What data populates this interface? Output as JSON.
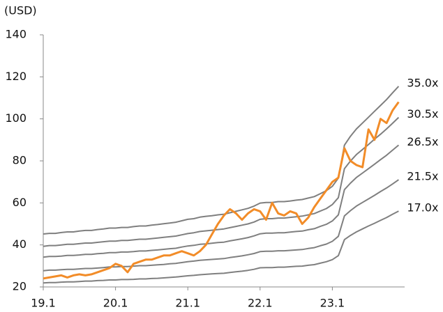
{
  "chart_data": {
    "type": "line",
    "y_label": "(USD)",
    "categories": [
      "19.1",
      null,
      null,
      null,
      null,
      null,
      null,
      null,
      null,
      null,
      null,
      null,
      "20.1",
      null,
      null,
      null,
      null,
      null,
      null,
      null,
      null,
      null,
      null,
      null,
      "21.1",
      null,
      null,
      null,
      null,
      null,
      null,
      null,
      null,
      null,
      null,
      null,
      "22.1",
      null,
      null,
      null,
      null,
      null,
      null,
      null,
      null,
      null,
      null,
      null,
      "23.1",
      null,
      null,
      null,
      null,
      null,
      null,
      null,
      null,
      null,
      null,
      null
    ],
    "ylim": [
      20,
      140
    ],
    "yticks": [
      20,
      40,
      60,
      80,
      100,
      120,
      140
    ],
    "series": [
      {
        "name": "35.0x",
        "color": "#7f7f7f",
        "values": [
          45.2,
          45.5,
          45.5,
          45.9,
          46.2,
          46.2,
          46.6,
          46.9,
          46.9,
          47.3,
          47.6,
          48.0,
          48.0,
          48.3,
          48.3,
          48.7,
          49.0,
          49.0,
          49.4,
          49.7,
          50.1,
          50.4,
          50.8,
          51.5,
          52.2,
          52.5,
          53.2,
          53.6,
          53.9,
          54.3,
          54.6,
          55.3,
          56.0,
          56.7,
          57.4,
          58.5,
          59.9,
          60.2,
          60.2,
          60.6,
          60.6,
          60.9,
          61.3,
          61.6,
          62.3,
          63.0,
          64.4,
          65.8,
          67.9,
          71.8,
          87.5,
          91.7,
          95.2,
          98.0,
          100.8,
          103.6,
          106.4,
          109.2,
          112.4,
          115.5
        ]
      },
      {
        "name": "30.5x",
        "color": "#7f7f7f",
        "values": [
          39.3,
          39.7,
          39.7,
          40.0,
          40.3,
          40.3,
          40.6,
          40.9,
          40.9,
          41.2,
          41.5,
          41.8,
          41.8,
          42.1,
          42.1,
          42.4,
          42.7,
          42.7,
          43.0,
          43.3,
          43.6,
          43.9,
          44.2,
          44.8,
          45.4,
          45.8,
          46.4,
          46.7,
          47.0,
          47.3,
          47.6,
          48.2,
          48.8,
          49.4,
          50.0,
          50.9,
          52.2,
          52.5,
          52.5,
          52.8,
          52.8,
          53.1,
          53.4,
          53.7,
          54.3,
          54.9,
          56.1,
          57.3,
          59.2,
          62.5,
          76.3,
          79.9,
          83.0,
          85.4,
          87.8,
          90.3,
          92.7,
          95.2,
          97.9,
          100.7
        ]
      },
      {
        "name": "26.5x",
        "color": "#7f7f7f",
        "values": [
          34.2,
          34.5,
          34.5,
          34.7,
          35.0,
          35.0,
          35.2,
          35.5,
          35.5,
          35.8,
          36.0,
          36.3,
          36.3,
          36.6,
          36.6,
          36.8,
          37.1,
          37.1,
          37.4,
          37.6,
          37.9,
          38.2,
          38.4,
          39.0,
          39.5,
          39.8,
          40.3,
          40.5,
          40.8,
          41.1,
          41.3,
          41.9,
          42.4,
          42.9,
          43.5,
          44.3,
          45.3,
          45.6,
          45.6,
          45.8,
          45.8,
          46.1,
          46.4,
          46.6,
          47.2,
          47.7,
          48.8,
          49.8,
          51.4,
          54.3,
          66.3,
          69.4,
          72.1,
          74.2,
          76.3,
          78.4,
          80.6,
          82.7,
          85.1,
          87.5
        ]
      },
      {
        "name": "21.5x",
        "color": "#7f7f7f",
        "values": [
          27.7,
          28.0,
          28.0,
          28.2,
          28.4,
          28.4,
          28.6,
          28.8,
          28.8,
          29.0,
          29.2,
          29.5,
          29.5,
          29.7,
          29.7,
          29.9,
          30.1,
          30.1,
          30.3,
          30.5,
          30.7,
          31.0,
          31.2,
          31.6,
          32.0,
          32.3,
          32.7,
          32.9,
          33.1,
          33.3,
          33.5,
          34.0,
          34.4,
          34.8,
          35.3,
          35.9,
          36.8,
          37.0,
          37.0,
          37.2,
          37.2,
          37.4,
          37.6,
          37.8,
          38.3,
          38.7,
          39.6,
          40.4,
          41.7,
          44.1,
          53.8,
          56.3,
          58.5,
          60.2,
          61.9,
          63.6,
          65.4,
          67.1,
          69.0,
          71.0
        ]
      },
      {
        "name": "17.0x",
        "color": "#7f7f7f",
        "values": [
          21.9,
          22.1,
          22.1,
          22.3,
          22.4,
          22.4,
          22.6,
          22.8,
          22.8,
          23.0,
          23.1,
          23.3,
          23.3,
          23.5,
          23.5,
          23.6,
          23.8,
          23.8,
          24.0,
          24.1,
          24.3,
          24.5,
          24.7,
          25.0,
          25.3,
          25.5,
          25.8,
          26.0,
          26.2,
          26.4,
          26.5,
          26.9,
          27.2,
          27.5,
          27.9,
          28.4,
          29.1,
          29.2,
          29.2,
          29.4,
          29.4,
          29.6,
          29.8,
          29.9,
          30.3,
          30.6,
          31.3,
          32.0,
          33.0,
          34.9,
          42.5,
          44.5,
          46.2,
          47.6,
          49.0,
          50.3,
          51.7,
          53.0,
          54.6,
          56.1
        ]
      },
      {
        "color": "#f28c28",
        "values": [
          24,
          24.5,
          25,
          25.5,
          24.5,
          25.5,
          26,
          25.5,
          26,
          27,
          28,
          29,
          31,
          30,
          27,
          31,
          32,
          33,
          33,
          34,
          35,
          35,
          36,
          37,
          36,
          35,
          37,
          40,
          45,
          50,
          54,
          57,
          55,
          52,
          55,
          57,
          56,
          52,
          60,
          55,
          54,
          56,
          55,
          50,
          53,
          58,
          62,
          66,
          70,
          72,
          86,
          80,
          78,
          77,
          95,
          90,
          100,
          98,
          104,
          108
        ]
      }
    ]
  }
}
